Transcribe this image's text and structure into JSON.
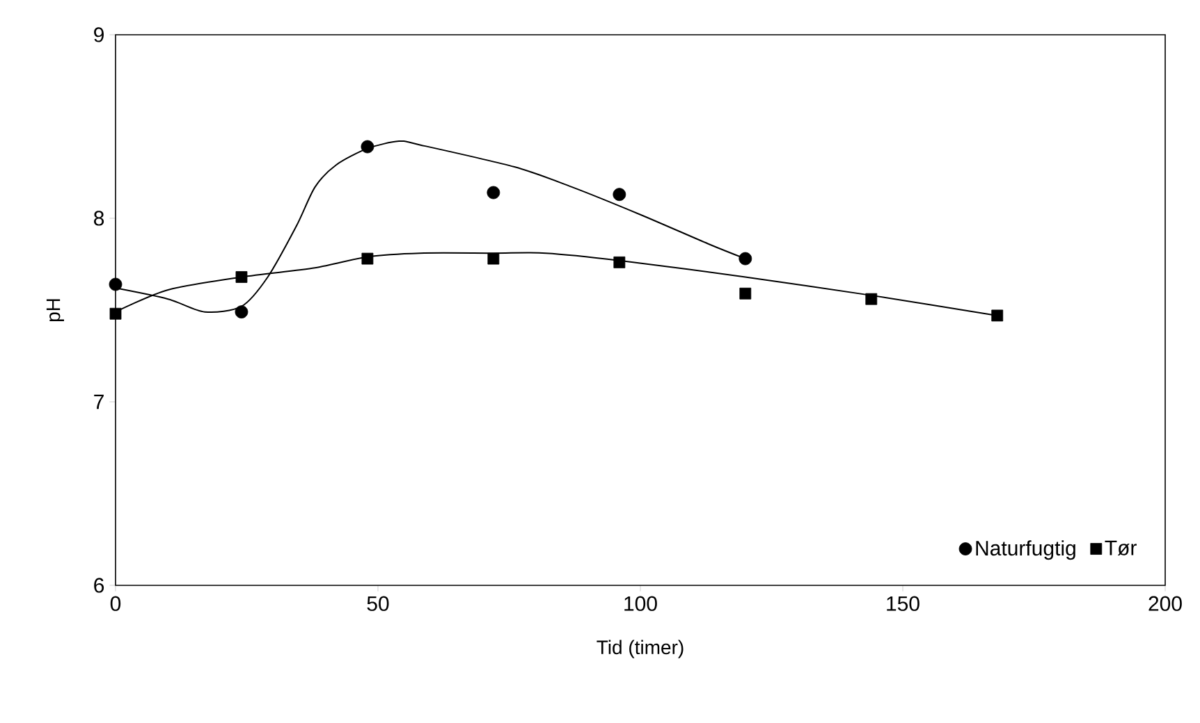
{
  "chart_data": {
    "type": "scatter",
    "xlabel": "Tid (timer)",
    "ylabel": "pH",
    "xlim": [
      0,
      200
    ],
    "xticks": [
      0,
      50,
      100,
      150,
      200
    ],
    "ylim": [
      6,
      9
    ],
    "yticks": [
      6,
      7,
      8,
      9
    ],
    "grid": false,
    "legend": "bottom right",
    "series": [
      {
        "name": "Naturfugtig",
        "marker": "circle",
        "color": "#000000",
        "x": [
          0,
          24,
          48,
          72,
          96,
          120
        ],
        "values": [
          7.64,
          7.49,
          8.39,
          8.14,
          8.13,
          7.78
        ]
      },
      {
        "name": "Tør",
        "marker": "square",
        "color": "#000000",
        "x": [
          0,
          24,
          48,
          72,
          96,
          120,
          144,
          168
        ],
        "values": [
          7.48,
          7.68,
          7.78,
          7.78,
          7.76,
          7.59,
          7.56,
          7.47
        ]
      },
      {
        "type": "line",
        "marker": "none",
        "line_style": "solid",
        "color": "#000000",
        "x": [
          0,
          10,
          17,
          24,
          29,
          34.5,
          38,
          42,
          48,
          54,
          58,
          76,
          87,
          100,
          113,
          120
        ],
        "values": [
          7.62,
          7.56,
          7.49,
          7.52,
          7.68,
          7.96,
          8.17,
          8.29,
          8.38,
          8.42,
          8.4,
          8.28,
          8.17,
          8.02,
          7.86,
          7.78
        ]
      },
      {
        "type": "line",
        "marker": "none",
        "line_style": "solid",
        "color": "#000000",
        "x": [
          0,
          10,
          24,
          38,
          48,
          58,
          72,
          82,
          96,
          120,
          144,
          168
        ],
        "values": [
          7.49,
          7.61,
          7.68,
          7.73,
          7.79,
          7.81,
          7.81,
          7.81,
          7.77,
          7.68,
          7.58,
          7.47
        ]
      }
    ]
  }
}
